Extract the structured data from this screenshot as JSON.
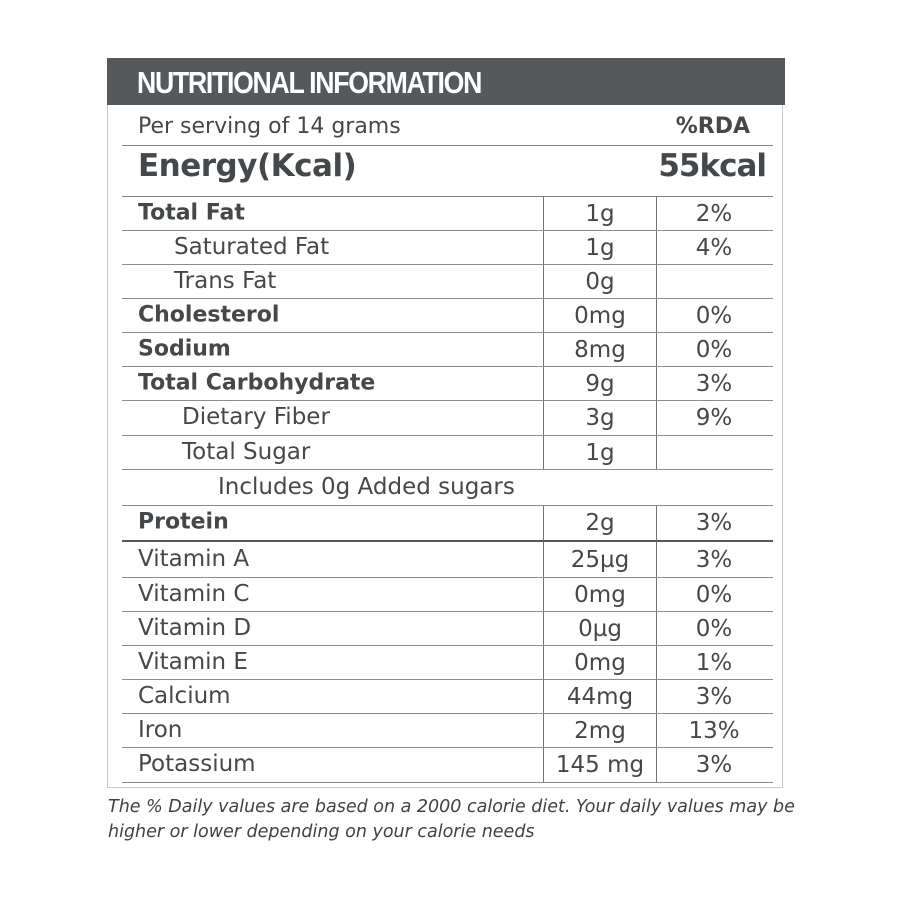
{
  "title": "NUTRITIONAL INFORMATION",
  "serving": "Per serving of 14 grams",
  "rda_header": "%RDA",
  "energy_label": "Energy(Kcal)",
  "energy_value": "55kcal",
  "rows": [
    {
      "name": "Total Fat",
      "amount": "1g",
      "rda": "2%",
      "bold": true,
      "indent": 0
    },
    {
      "name": "Saturated Fat",
      "amount": "1g",
      "rda": "4%",
      "bold": false,
      "indent": 1
    },
    {
      "name": "Trans Fat",
      "amount": "0g",
      "rda": "",
      "bold": false,
      "indent": 1
    },
    {
      "name": "Cholesterol",
      "amount": "0mg",
      "rda": "0%",
      "bold": true,
      "indent": 0
    },
    {
      "name": "Sodium",
      "amount": "8mg",
      "rda": "0%",
      "bold": true,
      "indent": 0
    },
    {
      "name": "Total Carbohydrate",
      "amount": "9g",
      "rda": "3%",
      "bold": true,
      "indent": 0
    },
    {
      "name": "Dietary Fiber",
      "amount": "3g",
      "rda": "9%",
      "bold": false,
      "indent": 2
    },
    {
      "name": "Total Sugar",
      "amount": "1g",
      "rda": "",
      "bold": false,
      "indent": 2
    },
    {
      "name": "Includes 0g Added sugars",
      "full": true,
      "bold": false,
      "indent": 3
    },
    {
      "name": "Protein",
      "amount": "2g",
      "rda": "3%",
      "bold": true,
      "indent": 0,
      "thick": true
    },
    {
      "name": "Vitamin A",
      "amount": "25µg",
      "rda": "3%",
      "bold": false,
      "indent": 0
    },
    {
      "name": "Vitamin C",
      "amount": "0mg",
      "rda": "0%",
      "bold": false,
      "indent": 0
    },
    {
      "name": "Vitamin D",
      "amount": "0µg",
      "rda": "0%",
      "bold": false,
      "indent": 0
    },
    {
      "name": "Vitamin E",
      "amount": "0mg",
      "rda": "1%",
      "bold": false,
      "indent": 0
    },
    {
      "name": "Calcium",
      "amount": "44mg",
      "rda": "3%",
      "bold": false,
      "indent": 0
    },
    {
      "name": "Iron",
      "amount": "2mg",
      "rda": "13%",
      "bold": false,
      "indent": 0
    },
    {
      "name": "Potassium",
      "amount": "145 mg",
      "rda": "3%",
      "bold": false,
      "indent": 0
    }
  ],
  "footnote": "The % Daily values are based on a 2000 calorie diet. Your daily values may be higher or lower depending on your calorie needs",
  "colors": {
    "header_bg": "#55595c",
    "text": "#45484a"
  }
}
